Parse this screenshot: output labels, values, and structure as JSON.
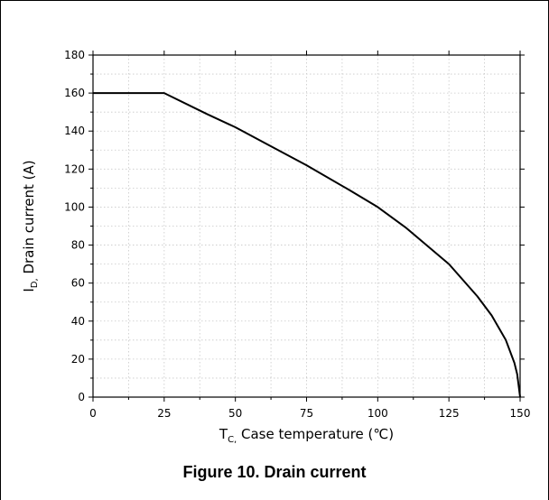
{
  "caption": "Figure 10. Drain current",
  "chart_data": {
    "type": "line",
    "xlabel_main": "T",
    "xlabel_sub": "C,",
    "xlabel_rest": " Case temperature (℃)",
    "ylabel_main": "I",
    "ylabel_sub": "D,",
    "ylabel_rest": " Drain current (A)",
    "xlim": [
      0,
      150
    ],
    "ylim": [
      0,
      180
    ],
    "xticks": [
      0,
      25,
      50,
      75,
      100,
      125,
      150
    ],
    "yticks": [
      0,
      20,
      40,
      60,
      80,
      100,
      120,
      140,
      160,
      180
    ],
    "grid": true,
    "series": [
      {
        "color": "#000000",
        "x": [
          0,
          25,
          40,
          50,
          60,
          75,
          90,
          100,
          110,
          125,
          135,
          140,
          145,
          148,
          149,
          150
        ],
        "y": [
          160,
          160,
          149,
          142,
          134,
          122,
          109,
          100,
          89,
          70,
          53,
          43,
          30,
          18,
          12,
          0
        ]
      }
    ]
  }
}
